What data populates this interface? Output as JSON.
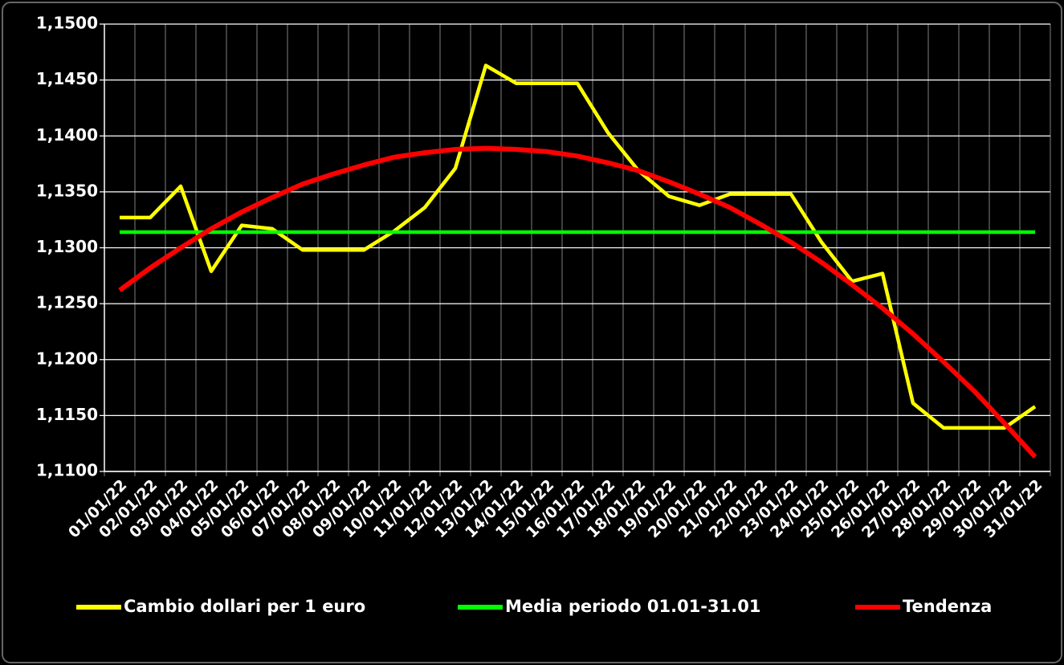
{
  "chart_data": {
    "type": "line",
    "categories": [
      "01/01/22",
      "02/01/22",
      "03/01/22",
      "04/01/22",
      "05/01/22",
      "06/01/22",
      "07/01/22",
      "08/01/22",
      "09/01/22",
      "10/01/22",
      "11/01/22",
      "12/01/22",
      "13/01/22",
      "14/01/22",
      "15/01/22",
      "16/01/22",
      "17/01/22",
      "18/01/22",
      "19/01/22",
      "20/01/22",
      "21/01/22",
      "22/01/22",
      "23/01/22",
      "24/01/22",
      "25/01/22",
      "26/01/22",
      "27/01/22",
      "28/01/22",
      "29/01/22",
      "30/01/22",
      "31/01/22"
    ],
    "series": [
      {
        "name": "Cambio dollari per 1 euro",
        "color": "#ffff00",
        "values": [
          1.1327,
          1.1327,
          1.1355,
          1.1279,
          1.132,
          1.1317,
          1.1298,
          1.1298,
          1.1298,
          1.1315,
          1.1336,
          1.1371,
          1.1463,
          1.1447,
          1.1447,
          1.1447,
          1.1403,
          1.1369,
          1.1346,
          1.1338,
          1.1348,
          1.1348,
          1.1348,
          1.1305,
          1.127,
          1.1277,
          1.1161,
          1.1139,
          1.1139,
          1.1139,
          1.1158
        ]
      },
      {
        "name": "Media periodo 01.01-31.01",
        "color": "#00ff00",
        "values": [
          1.1314,
          1.1314,
          1.1314,
          1.1314,
          1.1314,
          1.1314,
          1.1314,
          1.1314,
          1.1314,
          1.1314,
          1.1314,
          1.1314,
          1.1314,
          1.1314,
          1.1314,
          1.1314,
          1.1314,
          1.1314,
          1.1314,
          1.1314,
          1.1314,
          1.1314,
          1.1314,
          1.1314,
          1.1314,
          1.1314,
          1.1314,
          1.1314,
          1.1314,
          1.1314,
          1.1314
        ]
      },
      {
        "name": "Tendenza",
        "color": "#ff0000",
        "values": [
          1.1262,
          1.1282,
          1.13,
          1.1317,
          1.1332,
          1.1345,
          1.1357,
          1.1366,
          1.1374,
          1.1381,
          1.1385,
          1.1388,
          1.1389,
          1.1388,
          1.1386,
          1.1382,
          1.1376,
          1.1369,
          1.1359,
          1.1348,
          1.1336,
          1.1321,
          1.1305,
          1.1287,
          1.1267,
          1.1246,
          1.1223,
          1.1198,
          1.1172,
          1.1143,
          1.1113
        ]
      }
    ],
    "ylim": [
      1.11,
      1.15
    ],
    "yticks": [
      {
        "value": 1.11,
        "label": "1,1100"
      },
      {
        "value": 1.115,
        "label": "1,1150"
      },
      {
        "value": 1.12,
        "label": "1,1200"
      },
      {
        "value": 1.125,
        "label": "1,1250"
      },
      {
        "value": 1.13,
        "label": "1,1300"
      },
      {
        "value": 1.135,
        "label": "1,1350"
      },
      {
        "value": 1.14,
        "label": "1,1400"
      },
      {
        "value": 1.145,
        "label": "1,1450"
      },
      {
        "value": 1.15,
        "label": "1,1500"
      }
    ],
    "grid": true,
    "legend_position": "bottom"
  }
}
